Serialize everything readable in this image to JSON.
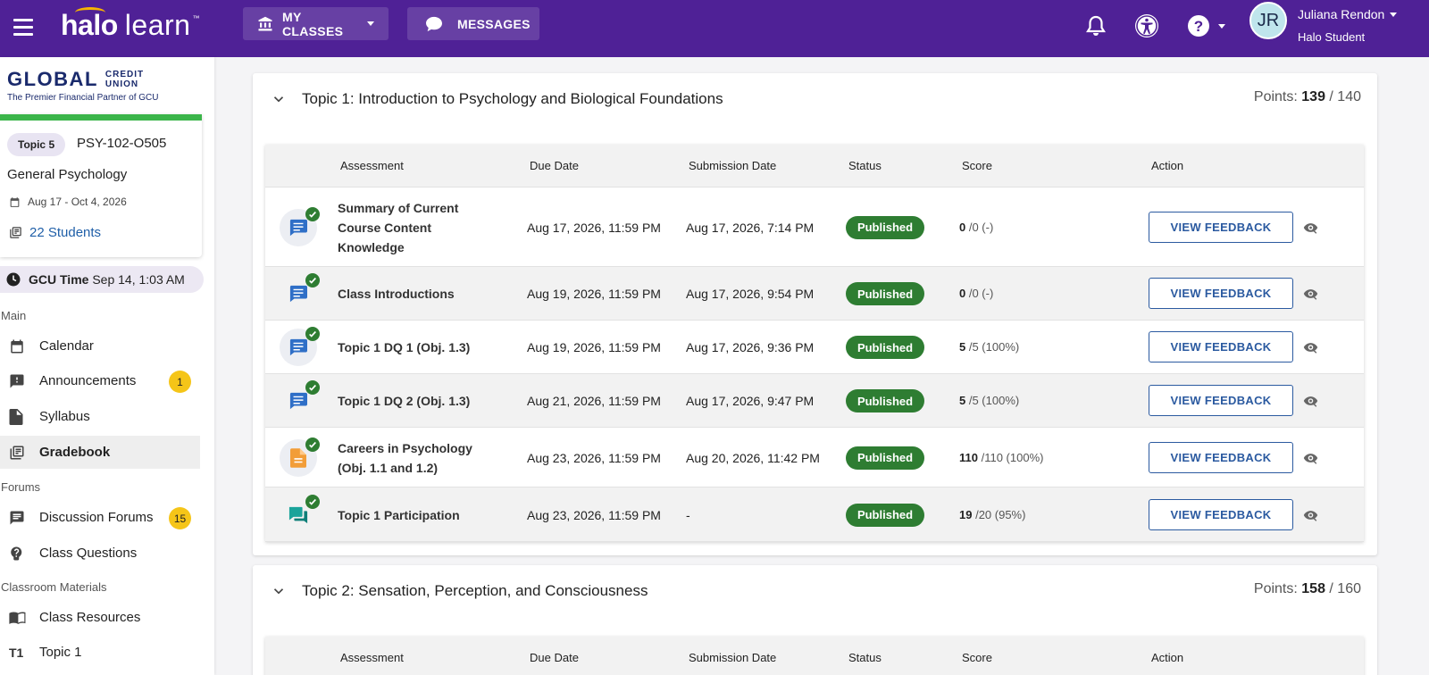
{
  "header": {
    "logo_primary": "halo",
    "logo_secondary": "learn",
    "logo_tm": "™",
    "my_classes_label": "MY CLASSES",
    "messages_label": "MESSAGES",
    "user": {
      "initials": "JR",
      "name": "Juliana Rendon",
      "role": "Halo Student"
    }
  },
  "sidebar": {
    "brand": {
      "name": "GLOBAL",
      "suffix_line1": "CREDIT",
      "suffix_line2": "UNION",
      "tagline": "The Premier Financial Partner of GCU"
    },
    "course": {
      "topic_chip": "Topic 5",
      "code": "PSY-102-O505",
      "name": "General Psychology",
      "dates": "Aug 17 - Oct 4, 2026",
      "students": "22 Students"
    },
    "gcu_time_label": "GCU Time",
    "gcu_time_value": "Sep 14, 1:03 AM",
    "sections": {
      "main": "Main",
      "forums": "Forums",
      "materials": "Classroom Materials"
    },
    "items": {
      "calendar": "Calendar",
      "announcements": "Announcements",
      "announcements_badge": "1",
      "syllabus": "Syllabus",
      "gradebook": "Gradebook",
      "discussion_forums": "Discussion Forums",
      "discussion_badge": "15",
      "class_questions": "Class Questions",
      "class_resources": "Class Resources",
      "topic1_prefix": "T1",
      "topic1": "Topic 1"
    }
  },
  "main": {
    "columns": {
      "assessment": "Assessment",
      "due": "Due Date",
      "submission": "Submission Date",
      "status": "Status",
      "score": "Score",
      "action": "Action"
    },
    "topic1": {
      "title": "Topic 1: Introduction to Psychology and Biological Foundations",
      "points_label": "Points:",
      "points_earned": "139",
      "points_total": " / 140",
      "rows": [
        {
          "name": "Summary of Current Course Content Knowledge",
          "due": "Aug 17, 2026, 11:59 PM",
          "submitted": "Aug 17, 2026, 7:14 PM",
          "status": "Published",
          "score": "0",
          "score_detail": " /0 (-)",
          "action": "VIEW FEEDBACK",
          "icon": "chat-icon"
        },
        {
          "name": "Class Introductions",
          "due": "Aug 19, 2026, 11:59 PM",
          "submitted": "Aug 17, 2026, 9:54 PM",
          "status": "Published",
          "score": "0",
          "score_detail": " /0 (-)",
          "action": "VIEW FEEDBACK",
          "icon": "chat-icon"
        },
        {
          "name": "Topic 1 DQ 1 (Obj. 1.3)",
          "due": "Aug 19, 2026, 11:59 PM",
          "submitted": "Aug 17, 2026, 9:36 PM",
          "status": "Published",
          "score": "5",
          "score_detail": " /5 (100%)",
          "action": "VIEW FEEDBACK",
          "icon": "chat-icon"
        },
        {
          "name": "Topic 1 DQ 2 (Obj. 1.3)",
          "due": "Aug 21, 2026, 11:59 PM",
          "submitted": "Aug 17, 2026, 9:47 PM",
          "status": "Published",
          "score": "5",
          "score_detail": " /5 (100%)",
          "action": "VIEW FEEDBACK",
          "icon": "chat-icon"
        },
        {
          "name": "Careers in Psychology (Obj. 1.1 and 1.2)",
          "due": "Aug 23, 2026, 11:59 PM",
          "submitted": "Aug 20, 2026, 11:42 PM",
          "status": "Published",
          "score": "110",
          "score_detail": " /110 (100%)",
          "action": "VIEW FEEDBACK",
          "icon": "document-icon"
        },
        {
          "name": "Topic 1 Participation",
          "due": "Aug 23, 2026, 11:59 PM",
          "submitted": "-",
          "status": "Published",
          "score": "19",
          "score_detail": " /20 (95%)",
          "action": "VIEW FEEDBACK",
          "icon": "participation-icon"
        }
      ]
    },
    "topic2": {
      "title": "Topic 2: Sensation, Perception, and Consciousness",
      "points_label": "Points:",
      "points_earned": "158",
      "points_total": " / 160"
    }
  },
  "colors": {
    "header_bg": "#4f2196",
    "published": "#2e7d32",
    "link": "#1f5fa8",
    "badge": "#f5c518",
    "card_accent": "#3bb54a"
  }
}
